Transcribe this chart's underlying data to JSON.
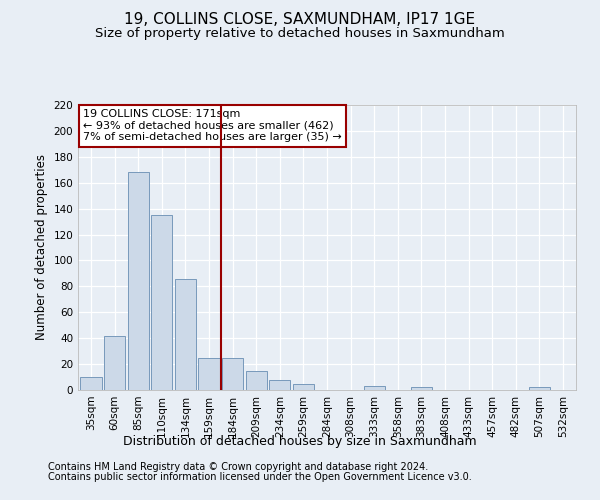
{
  "title": "19, COLLINS CLOSE, SAXMUNDHAM, IP17 1GE",
  "subtitle": "Size of property relative to detached houses in Saxmundham",
  "xlabel": "Distribution of detached houses by size in Saxmundham",
  "ylabel": "Number of detached properties",
  "footnote1": "Contains HM Land Registry data © Crown copyright and database right 2024.",
  "footnote2": "Contains public sector information licensed under the Open Government Licence v3.0.",
  "categories": [
    "35sqm",
    "60sqm",
    "85sqm",
    "110sqm",
    "134sqm",
    "159sqm",
    "184sqm",
    "209sqm",
    "234sqm",
    "259sqm",
    "284sqm",
    "308sqm",
    "333sqm",
    "358sqm",
    "383sqm",
    "408sqm",
    "433sqm",
    "457sqm",
    "482sqm",
    "507sqm",
    "532sqm"
  ],
  "values": [
    10,
    42,
    168,
    135,
    86,
    25,
    25,
    15,
    8,
    5,
    0,
    0,
    3,
    0,
    2,
    0,
    0,
    0,
    0,
    2,
    0
  ],
  "bar_color": "#ccd9e8",
  "bar_edge_color": "#7799bb",
  "vline_x_index": 6,
  "vline_color": "#990000",
  "annotation_text": "19 COLLINS CLOSE: 171sqm\n← 93% of detached houses are smaller (462)\n7% of semi-detached houses are larger (35) →",
  "annotation_box_facecolor": "#ffffff",
  "annotation_box_edgecolor": "#990000",
  "ylim": [
    0,
    220
  ],
  "yticks": [
    0,
    20,
    40,
    60,
    80,
    100,
    120,
    140,
    160,
    180,
    200,
    220
  ],
  "background_color": "#e8eef5",
  "plot_bg_color": "#e8eef5",
  "grid_color": "#ffffff",
  "title_fontsize": 11,
  "subtitle_fontsize": 9.5,
  "ylabel_fontsize": 8.5,
  "xlabel_fontsize": 9,
  "tick_fontsize": 7.5,
  "footnote_fontsize": 7,
  "annotation_fontsize": 8
}
